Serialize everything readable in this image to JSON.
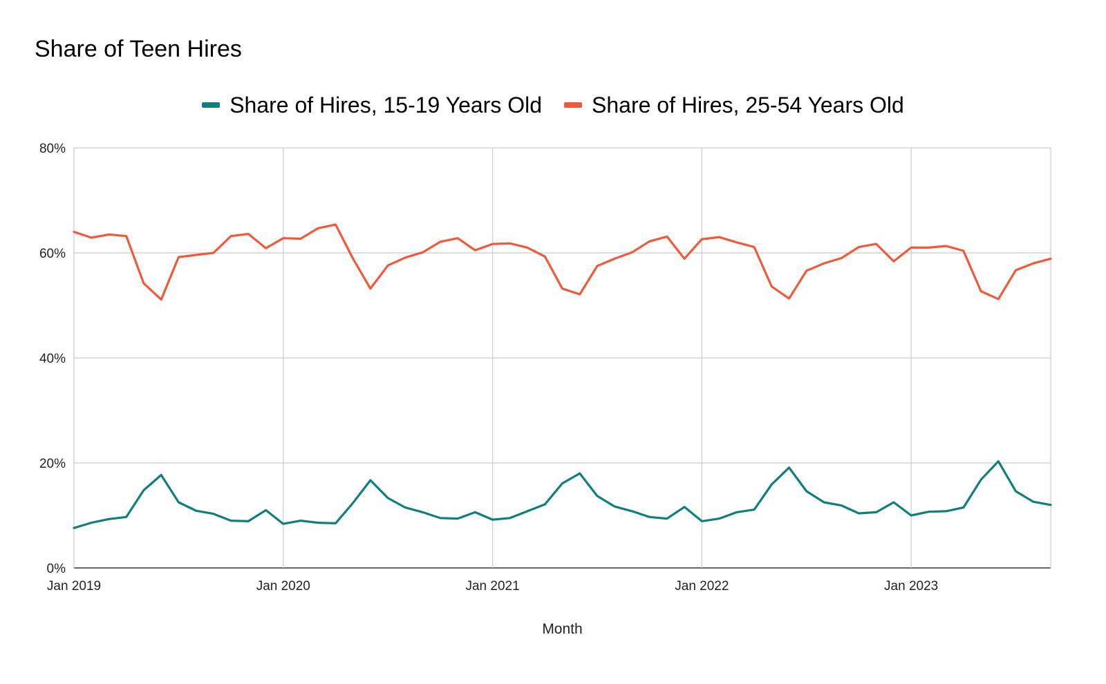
{
  "chart_data": {
    "type": "line",
    "title": "Share of Teen Hires",
    "xlabel": "Month",
    "ylabel": "",
    "ylim": [
      0,
      80
    ],
    "y_ticks": [
      "0%",
      "20%",
      "40%",
      "60%",
      "80%"
    ],
    "x_ticks": [
      "Jan 2019",
      "Jan 2020",
      "Jan 2021",
      "Jan 2022",
      "Jan 2023"
    ],
    "x_start": "2019-01",
    "x_end": "2023-09",
    "grid": true,
    "legend_position": "top",
    "series": [
      {
        "name": "Share of Hires, 15-19 Years Old",
        "color": "#0f7f7c",
        "values": [
          7.6,
          8.6,
          9.3,
          9.7,
          14.8,
          17.7,
          12.5,
          10.9,
          10.3,
          9.0,
          8.9,
          11.0,
          8.4,
          9.0,
          8.6,
          8.5,
          12.4,
          16.7,
          13.3,
          11.5,
          10.6,
          9.5,
          9.4,
          10.6,
          9.2,
          9.5,
          10.8,
          12.1,
          16.1,
          18.0,
          13.7,
          11.7,
          10.8,
          9.7,
          9.4,
          11.6,
          8.9,
          9.4,
          10.6,
          11.1,
          15.9,
          19.1,
          14.6,
          12.5,
          11.9,
          10.4,
          10.6,
          12.5,
          10.0,
          10.7,
          10.8,
          11.5,
          16.8,
          20.3,
          14.6,
          12.6,
          12.0
        ]
      },
      {
        "name": "Share of Hires, 25-54 Years Old",
        "color": "#f05a3c",
        "values": [
          64.0,
          62.9,
          63.5,
          63.2,
          54.2,
          51.1,
          59.2,
          59.6,
          60.0,
          63.2,
          63.6,
          60.9,
          62.8,
          62.7,
          64.7,
          65.4,
          58.9,
          53.2,
          57.6,
          59.1,
          60.1,
          62.1,
          62.8,
          60.5,
          61.7,
          61.8,
          61.0,
          59.3,
          53.2,
          52.1,
          57.5,
          58.9,
          60.1,
          62.2,
          63.1,
          58.9,
          62.6,
          63.0,
          62.0,
          61.1,
          53.6,
          51.3,
          56.6,
          58.0,
          59.0,
          61.1,
          61.7,
          58.4,
          61.0,
          61.0,
          61.3,
          60.4,
          52.7,
          51.2,
          56.7,
          58.0,
          58.9
        ]
      }
    ]
  }
}
